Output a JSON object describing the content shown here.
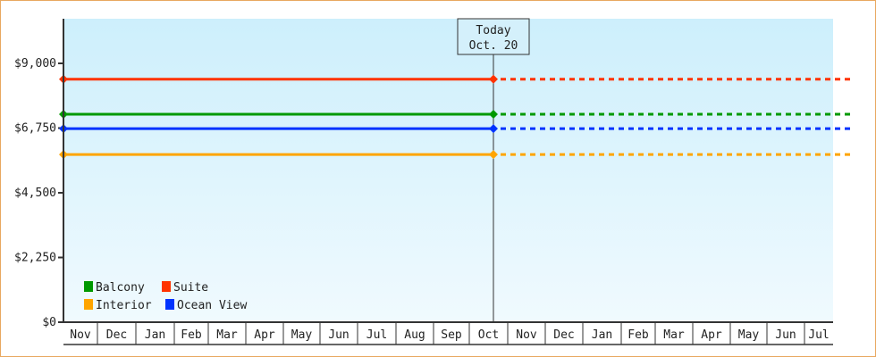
{
  "chart_data": {
    "type": "line",
    "title": "",
    "xlabel": "",
    "ylabel": "",
    "ylim": [
      0,
      10800
    ],
    "yticks": [
      "$0",
      "$2,250",
      "$4,500",
      "$6,750",
      "$9,000"
    ],
    "ytick_values": [
      0,
      2250,
      4500,
      6750,
      9000
    ],
    "months": [
      "Nov",
      "Dec",
      "Jan",
      "Feb",
      "Mar",
      "Apr",
      "May",
      "Jun",
      "Jul",
      "Aug",
      "Sep",
      "Oct",
      "Nov",
      "Dec",
      "Jan",
      "Feb",
      "Mar",
      "Apr",
      "May",
      "Jun",
      "Jul"
    ],
    "today_label": "Today",
    "today_date": "Oct. 20",
    "series": [
      {
        "name": "Suite",
        "color": "#ff3300",
        "value": 8450
      },
      {
        "name": "Balcony",
        "color": "#009900",
        "value": 7230
      },
      {
        "name": "Ocean View",
        "color": "#0033ff",
        "value": 6730
      },
      {
        "name": "Interior",
        "color": "#ffa500",
        "value": 5830
      }
    ],
    "legend": [
      "Balcony",
      "Suite",
      "Interior",
      "Ocean View"
    ],
    "legend_placement": "bottom-left",
    "grid": false,
    "note": ""
  }
}
